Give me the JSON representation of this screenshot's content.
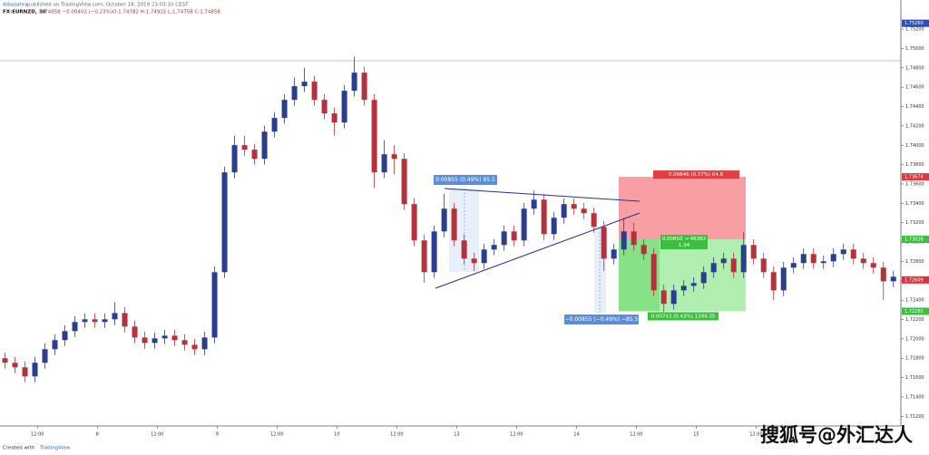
{
  "header": {
    "author": "Albozahra",
    "published": "published on TradingView.com, October 18, 2019 23:03:10 CEST",
    "symbol": "FX:EURNZD, 30",
    "quote": "1.74858 −0.00402 (−0.23%)",
    "ohlc": "O:1.74782  H:1.74915  L:1.74758  C:1.74858"
  },
  "footer": {
    "created": "Created with",
    "brand": "TradingView"
  },
  "watermark": "搜狐号@外汇达人",
  "annotations": {
    "measure_up": "0.00855 (0.49%) 85.5",
    "measure_down": "−0.00855 (−0.49%) −85.5",
    "stop_label": "0.00646 (0.37%) 64.6",
    "entry_label": "0.00850 → 46382",
    "ratio_label": "1.34",
    "target_label": "0.00743 (0.43%) 1394.35"
  },
  "chart_data": {
    "type": "candlestick",
    "up_color": "#2b3d8f",
    "down_color": "#b5313b",
    "grid": false,
    "xlim": [
      0,
      180.5
    ],
    "xticks": [
      {
        "value": 7.5,
        "label": "12:00"
      },
      {
        "value": 19.5,
        "label": "8"
      },
      {
        "value": 31.5,
        "label": "12:00"
      },
      {
        "value": 43.5,
        "label": "9"
      },
      {
        "value": 55.5,
        "label": "12:00"
      },
      {
        "value": 67.5,
        "label": "10"
      },
      {
        "value": 79.5,
        "label": "12:00"
      },
      {
        "value": 91.5,
        "label": "13"
      },
      {
        "value": 103.5,
        "label": "12:00"
      },
      {
        "value": 115.5,
        "label": "14"
      },
      {
        "value": 127.5,
        "label": "12:00"
      },
      {
        "value": 139.5,
        "label": "15"
      },
      {
        "value": 151.5,
        "label": "12:00"
      }
    ],
    "ylim": [
      1.711,
      1.7536
    ],
    "yticks": [
      {
        "value": 1.712,
        "label": "1.71200"
      },
      {
        "value": 1.714,
        "label": "1.71400"
      },
      {
        "value": 1.716,
        "label": "1.71600"
      },
      {
        "value": 1.718,
        "label": "1.71800"
      },
      {
        "value": 1.72,
        "label": "1.72000"
      },
      {
        "value": 1.722,
        "label": "1.72200"
      },
      {
        "value": 1.724,
        "label": "1.72400"
      },
      {
        "value": 1.726,
        "label": "1.72600"
      },
      {
        "value": 1.728,
        "label": "1.72800"
      },
      {
        "value": 1.73,
        "label": "1.73000"
      },
      {
        "value": 1.732,
        "label": "1.73200"
      },
      {
        "value": 1.734,
        "label": "1.73400"
      },
      {
        "value": 1.736,
        "label": "1.73600"
      },
      {
        "value": 1.738,
        "label": "1.73800"
      },
      {
        "value": 1.74,
        "label": "1.74000"
      },
      {
        "value": 1.742,
        "label": "1.74200"
      },
      {
        "value": 1.744,
        "label": "1.74400"
      },
      {
        "value": 1.746,
        "label": "1.74600"
      },
      {
        "value": 1.748,
        "label": "1.74800"
      },
      {
        "value": 1.75,
        "label": "1.75000"
      },
      {
        "value": 1.752,
        "label": "1.75200"
      }
    ],
    "price_labels": [
      {
        "value": 1.7526,
        "label": "1.75260",
        "color": "#2f4fb5"
      },
      {
        "value": 1.73674,
        "label": "1.73674",
        "color": "#e0383e"
      },
      {
        "value": 1.73028,
        "label": "1.73028",
        "color": "#3cbf3c"
      },
      {
        "value": 1.72609,
        "label": "1.72609",
        "color": "#d9333b"
      },
      {
        "value": 1.72285,
        "label": "1.72285",
        "color": "#3cbf3c"
      }
    ],
    "x": [
      1,
      3,
      5,
      7,
      9,
      11,
      13,
      15,
      17,
      19,
      21,
      23,
      25,
      27,
      29,
      31,
      33,
      35,
      37,
      39,
      41,
      43,
      45,
      47,
      49,
      51,
      53,
      55,
      57,
      59,
      61,
      63,
      65,
      67,
      69,
      71,
      73,
      75,
      77,
      79,
      81,
      83,
      85,
      87,
      89,
      91,
      93,
      95,
      97,
      99,
      101,
      103,
      105,
      107,
      109,
      111,
      113,
      115,
      117,
      119,
      121,
      123,
      125,
      127,
      129,
      131,
      133,
      135,
      137,
      139,
      141,
      143,
      145,
      147,
      149,
      151,
      153,
      155,
      157,
      159,
      161,
      163,
      165,
      167,
      169,
      171,
      173,
      175,
      177,
      179
    ],
    "open": [
      1.718,
      1.71753,
      1.71706,
      1.71612,
      1.71753,
      1.71893,
      1.71987,
      1.7208,
      1.72174,
      1.72202,
      1.72174,
      1.72202,
      1.72267,
      1.72127,
      1.72014,
      1.71958,
      1.72005,
      1.72033,
      1.71987,
      1.71939,
      1.71893,
      1.72014,
      1.72689,
      1.7372,
      1.74001,
      1.73954,
      1.7386,
      1.74141,
      1.74282,
      1.74469,
      1.7461,
      1.74657,
      1.74469,
      1.74329,
      1.74235,
      1.74563,
      1.7475,
      1.74469,
      1.7372,
      1.73907,
      1.7386,
      1.73392,
      1.73017,
      1.72689,
      1.7311,
      1.73345,
      1.73017,
      1.72829,
      1.72783,
      1.72923,
      1.7297,
      1.7311,
      1.73017,
      1.73345,
      1.73438,
      1.73082,
      1.73251,
      1.73392,
      1.73345,
      1.73298,
      1.73157,
      1.72829,
      1.72923,
      1.7311,
      1.7297,
      1.72876,
      1.72501,
      1.72361,
      1.72501,
      1.72548,
      1.72576,
      1.72689,
      1.72783,
      1.72829,
      1.72689,
      1.7297,
      1.72829,
      1.72689,
      1.72501,
      1.72736,
      1.72783,
      1.72876,
      1.72783,
      1.72801,
      1.72876,
      1.72923,
      1.72829,
      1.72783,
      1.72736,
      1.72595
    ],
    "high": [
      1.7186,
      1.71813,
      1.71766,
      1.71813,
      1.71953,
      1.72047,
      1.7214,
      1.72234,
      1.72262,
      1.72262,
      1.72262,
      1.7238,
      1.72327,
      1.72187,
      1.72074,
      1.72065,
      1.72093,
      1.72093,
      1.72047,
      1.71999,
      1.72074,
      1.72749,
      1.7378,
      1.741,
      1.741,
      1.74014,
      1.74201,
      1.74342,
      1.74529,
      1.747,
      1.748,
      1.74717,
      1.74529,
      1.74389,
      1.74623,
      1.74915,
      1.7481,
      1.74529,
      1.7405,
      1.74,
      1.7392,
      1.73452,
      1.73077,
      1.7317,
      1.735,
      1.73405,
      1.73077,
      1.72889,
      1.72983,
      1.7303,
      1.7317,
      1.7317,
      1.73405,
      1.7353,
      1.73498,
      1.73311,
      1.73452,
      1.73452,
      1.73405,
      1.73358,
      1.73217,
      1.72983,
      1.7325,
      1.732,
      1.7303,
      1.72936,
      1.72561,
      1.72561,
      1.72608,
      1.72636,
      1.72749,
      1.72843,
      1.72889,
      1.72889,
      1.731,
      1.7303,
      1.72889,
      1.72749,
      1.72796,
      1.72843,
      1.72936,
      1.72936,
      1.72861,
      1.72936,
      1.72983,
      1.72983,
      1.72889,
      1.72843,
      1.72796,
      1.72702
    ],
    "low": [
      1.71693,
      1.71646,
      1.71552,
      1.71552,
      1.71693,
      1.71833,
      1.71927,
      1.7202,
      1.72114,
      1.72114,
      1.72114,
      1.72142,
      1.72067,
      1.71954,
      1.71898,
      1.71898,
      1.71945,
      1.71927,
      1.71879,
      1.71833,
      1.71833,
      1.71954,
      1.72629,
      1.7366,
      1.73894,
      1.738,
      1.738,
      1.74081,
      1.74222,
      1.74409,
      1.7455,
      1.74409,
      1.74269,
      1.741,
      1.74175,
      1.74503,
      1.74409,
      1.7356,
      1.7366,
      1.737,
      1.73332,
      1.72957,
      1.7258,
      1.72629,
      1.7305,
      1.72957,
      1.72769,
      1.727,
      1.72723,
      1.72863,
      1.7291,
      1.72957,
      1.72957,
      1.73285,
      1.73022,
      1.73022,
      1.73191,
      1.73285,
      1.73238,
      1.73097,
      1.727,
      1.72769,
      1.72863,
      1.7291,
      1.72816,
      1.72441,
      1.7225,
      1.72301,
      1.72441,
      1.72488,
      1.72516,
      1.72629,
      1.72723,
      1.72629,
      1.72629,
      1.72769,
      1.72629,
      1.724,
      1.72441,
      1.72676,
      1.72723,
      1.72723,
      1.72723,
      1.72741,
      1.72816,
      1.72769,
      1.72723,
      1.72676,
      1.724,
      1.72535
    ],
    "close": [
      1.71753,
      1.71706,
      1.71612,
      1.71753,
      1.71893,
      1.71987,
      1.7208,
      1.72174,
      1.72202,
      1.72174,
      1.72202,
      1.72267,
      1.72127,
      1.72014,
      1.71958,
      1.72005,
      1.72033,
      1.71987,
      1.71939,
      1.71893,
      1.72014,
      1.72689,
      1.7372,
      1.74001,
      1.73954,
      1.7386,
      1.74141,
      1.74282,
      1.74469,
      1.7461,
      1.74657,
      1.74469,
      1.74329,
      1.74235,
      1.74563,
      1.7475,
      1.74469,
      1.7372,
      1.73907,
      1.7386,
      1.73392,
      1.73017,
      1.72689,
      1.7311,
      1.73345,
      1.73017,
      1.72829,
      1.72783,
      1.72923,
      1.7297,
      1.7311,
      1.73017,
      1.73345,
      1.73438,
      1.73082,
      1.73251,
      1.73392,
      1.73345,
      1.73298,
      1.73157,
      1.72829,
      1.72923,
      1.7311,
      1.7297,
      1.72876,
      1.72501,
      1.72361,
      1.72501,
      1.72548,
      1.72576,
      1.72689,
      1.72783,
      1.72829,
      1.72689,
      1.7297,
      1.72829,
      1.72689,
      1.72501,
      1.72736,
      1.72783,
      1.72876,
      1.72783,
      1.72801,
      1.72876,
      1.72923,
      1.72829,
      1.72783,
      1.72736,
      1.72595,
      1.72642
    ]
  }
}
